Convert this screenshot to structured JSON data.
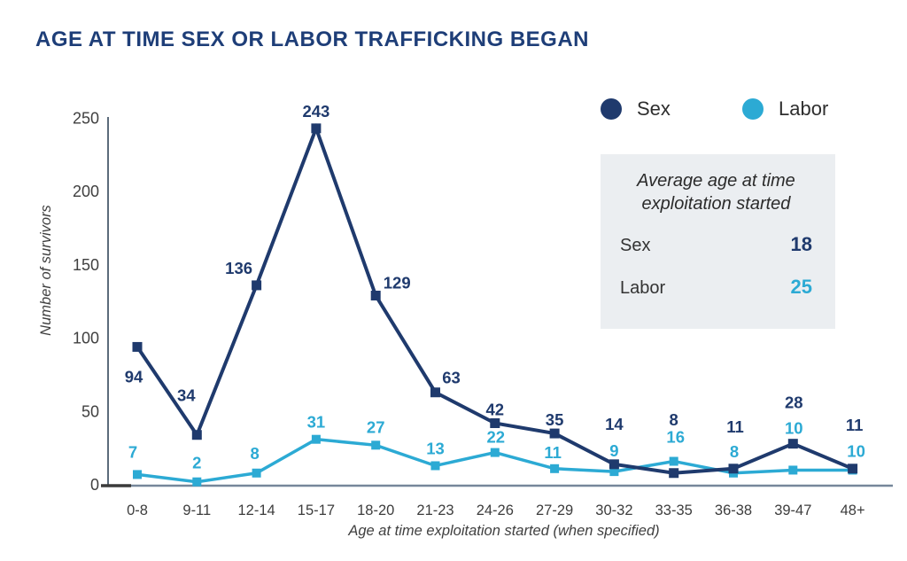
{
  "page": {
    "title": "AGE AT TIME SEX OR LABOR TRAFFICKING BEGAN"
  },
  "legend": {
    "items": [
      {
        "label": "Sex",
        "color": "#1f3a6d"
      },
      {
        "label": "Labor",
        "color": "#2caad4"
      }
    ]
  },
  "info_box": {
    "heading": "Average age at time exploitation started",
    "rows": [
      {
        "label": "Sex",
        "value": "18",
        "color": "#1f3a6d"
      },
      {
        "label": "Labor",
        "value": "25",
        "color": "#2caad4"
      }
    ]
  },
  "chart_data": {
    "type": "line",
    "title": "AGE AT TIME SEX OR LABOR TRAFFICKING BEGAN",
    "categories": [
      "0-8",
      "9-11",
      "12-14",
      "15-17",
      "18-20",
      "21-23",
      "24-26",
      "27-29",
      "30-32",
      "33-35",
      "36-38",
      "39-47",
      "48+"
    ],
    "series": [
      {
        "name": "Sex",
        "color": "#1f3a6d",
        "values": [
          94,
          34,
          136,
          243,
          129,
          63,
          42,
          35,
          14,
          8,
          11,
          28,
          11
        ]
      },
      {
        "name": "Labor",
        "color": "#2caad4",
        "values": [
          7,
          2,
          8,
          31,
          27,
          13,
          22,
          11,
          9,
          16,
          8,
          10,
          10
        ]
      }
    ],
    "xlabel": "Age at time exploitation started (when specified)",
    "ylabel": "Number of survivors",
    "ylim": [
      0,
      250
    ],
    "yticks": [
      0,
      50,
      100,
      150,
      200,
      250
    ],
    "grid": false,
    "legend_position": "top-right",
    "marker": "square",
    "layout_hints": {
      "label_offsets": {
        "Sex": [
          [
            -4,
            34
          ],
          [
            -12,
            -44
          ],
          [
            -20,
            -19
          ],
          [
            0,
            -19
          ],
          [
            24,
            -14
          ],
          [
            18,
            -16
          ],
          [
            0,
            -15
          ],
          [
            0,
            -15
          ],
          [
            0,
            -45
          ],
          [
            0,
            -60
          ],
          [
            2,
            -47
          ],
          [
            1,
            -46
          ],
          [
            2,
            -49
          ]
        ],
        "Labor": [
          [
            -5,
            -25
          ],
          [
            0,
            -21
          ],
          [
            -2,
            -22
          ],
          [
            0,
            -19
          ],
          [
            0,
            -20
          ],
          [
            0,
            -19
          ],
          [
            1,
            -17
          ],
          [
            -2,
            -18
          ],
          [
            0,
            -23
          ],
          [
            2,
            -27
          ],
          [
            1,
            -24
          ],
          [
            1,
            -47
          ],
          [
            4,
            -21
          ]
        ]
      }
    }
  }
}
